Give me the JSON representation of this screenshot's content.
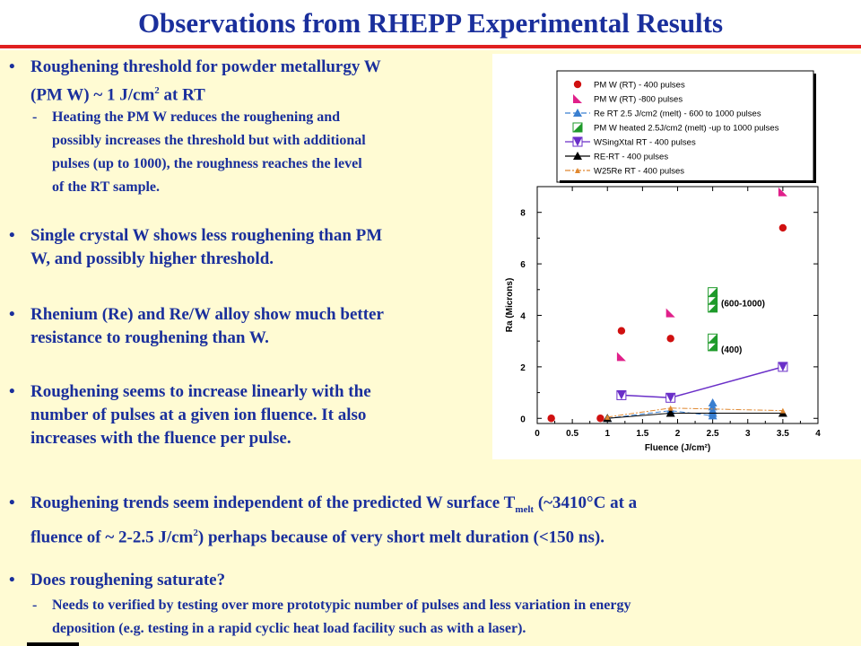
{
  "title": "Observations from RHEPP Experimental Results",
  "bullets": {
    "b1_line1": "Roughening threshold for powder metallurgy W",
    "b1_line2a": "(PM W) ~ 1 J/cm",
    "b1_line2sup": "2",
    "b1_line2b": " at RT",
    "b1_sub1": "Heating the PM W reduces the roughening and",
    "b1_sub2": "possibly increases the threshold but with additional",
    "b1_sub3": "pulses (up to 1000), the roughness reaches the level",
    "b1_sub4": "of the RT sample.",
    "b2_line1": "Single crystal W shows less roughening than PM",
    "b2_line2": "W, and possibly higher threshold.",
    "b3_line1": "Rhenium (Re) and Re/W alloy show much better",
    "b3_line2": "resistance to roughening than W.",
    "b4_line1": "Roughening seems to increase linearly with the",
    "b4_line2": "number of pulses at a given ion fluence. It also",
    "b4_line3": "increases with the fluence per pulse.",
    "b5_line1a": "Roughening trends seem independent of the predicted W surface T",
    "b5_line1sub": "melt",
    "b5_line1b": " (~3410°C at a",
    "b5_line2a": "fluence of ~ 2-2.5 J/cm",
    "b5_line2sup": "2",
    "b5_line2b": ") perhaps because of very short melt duration (<150 ns).",
    "b6_line1": "Does roughening saturate?",
    "b6_sub1": "Needs to verified by testing over more prototypic number of pulses and less variation in energy",
    "b6_sub2": "deposition (e.g.  testing in a rapid cyclic heat load facility such as with a laser).",
    "bullet_char": "•",
    "dash_char": "-"
  },
  "chart_data": {
    "type": "scatter",
    "xlabel": "Fluence (J/cm²)",
    "ylabel": "Ra (Microns)",
    "xlim": [
      0,
      4
    ],
    "ylim": [
      -0.2,
      9
    ],
    "x_ticks": [
      "0",
      "0.5",
      "1",
      "1.5",
      "2",
      "2.5",
      "3",
      "3.5",
      "4"
    ],
    "y_ticks": [
      "0",
      "2",
      "4",
      "6",
      "8"
    ],
    "legend_position": "top",
    "annotations": [
      "(600-1000)",
      "(400)"
    ],
    "series": [
      {
        "name": "PM W (RT) - 400 pulses",
        "marker": "circle",
        "color": "#d01010",
        "line": false,
        "points": [
          [
            0.2,
            0
          ],
          [
            0.9,
            0
          ],
          [
            1.2,
            3.4
          ],
          [
            1.9,
            3.1
          ],
          [
            3.5,
            7.4
          ]
        ]
      },
      {
        "name": "PM W (RT) -800 pulses",
        "marker": "pink-tri",
        "color": "#e0208a",
        "line": false,
        "points": [
          [
            1.2,
            2.4
          ],
          [
            1.9,
            4.1
          ],
          [
            3.5,
            8.8
          ]
        ]
      },
      {
        "name": "Re RT 2.5 J/cm2 (melt) - 600 to 1000 pulses",
        "marker": "blue-tri",
        "color": "#3a7fd0",
        "line": true,
        "dash": "6,3",
        "points": [
          [
            1.0,
            0
          ],
          [
            1.9,
            0.3
          ],
          [
            2.5,
            0.1
          ],
          [
            2.5,
            0.2
          ],
          [
            2.5,
            0.3
          ],
          [
            2.5,
            0.45
          ],
          [
            2.5,
            0.6
          ]
        ]
      },
      {
        "name": "PM W heated 2.5J/cm2 (melt) -up to 1000 pulses",
        "marker": "green-tri",
        "color": "#1e9a2a",
        "line": false,
        "points": [
          [
            2.5,
            2.8
          ],
          [
            2.5,
            3.1
          ],
          [
            2.5,
            4.3
          ],
          [
            2.5,
            4.6
          ],
          [
            2.5,
            4.9
          ]
        ]
      },
      {
        "name": "WSingXtal RT - 400 pulses",
        "marker": "purple-tri",
        "color": "#6a2fc8",
        "line": true,
        "dash": "",
        "points": [
          [
            1.2,
            0.9
          ],
          [
            1.9,
            0.8
          ],
          [
            3.5,
            2.0
          ]
        ]
      },
      {
        "name": "RE-RT - 400 pulses",
        "marker": "black-tri",
        "color": "#000000",
        "line": true,
        "dash": "",
        "points": [
          [
            1.0,
            0
          ],
          [
            1.9,
            0.2
          ],
          [
            3.5,
            0.2
          ]
        ]
      },
      {
        "name": "W25Re RT - 400 pulses",
        "marker": "orange-tri",
        "color": "#e08830",
        "line": true,
        "dash": "6,2,2,2",
        "points": [
          [
            1.0,
            0.05
          ],
          [
            1.9,
            0.4
          ],
          [
            3.5,
            0.3
          ]
        ]
      }
    ]
  }
}
